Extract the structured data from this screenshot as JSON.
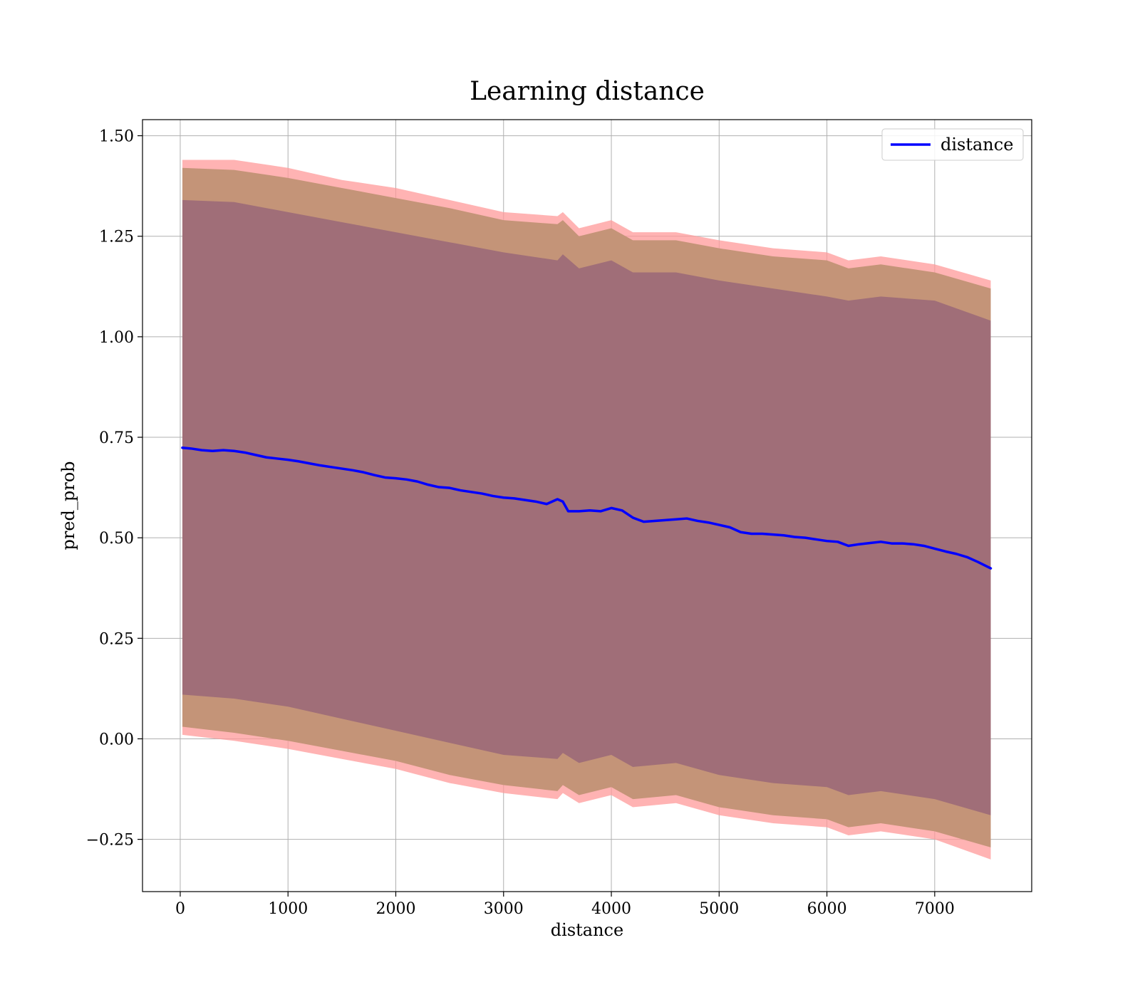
{
  "chart_data": {
    "type": "line",
    "title": "Learning distance",
    "xlabel": "distance",
    "ylabel": "pred_prob",
    "xlim": [
      -350,
      7900
    ],
    "ylim": [
      -0.38,
      1.54
    ],
    "xticks": [
      0,
      1000,
      2000,
      3000,
      4000,
      5000,
      6000,
      7000
    ],
    "yticks": [
      -0.25,
      0.0,
      0.25,
      0.5,
      0.75,
      1.0,
      1.25,
      1.5
    ],
    "ytick_labels": [
      "−0.25",
      "0.00",
      "0.25",
      "0.50",
      "0.75",
      "1.00",
      "1.25",
      "1.50"
    ],
    "grid": true,
    "legend_position": "top-right",
    "colors": {
      "line": "#0000ff",
      "outer_band": "#ff9999",
      "middle_band": "#c49478",
      "inner_band": "#a06e78"
    },
    "series": [
      {
        "name": "distance",
        "x": [
          20,
          100,
          200,
          300,
          400,
          500,
          600,
          700,
          800,
          900,
          1000,
          1100,
          1200,
          1300,
          1400,
          1500,
          1600,
          1700,
          1800,
          1900,
          2000,
          2100,
          2200,
          2300,
          2400,
          2500,
          2600,
          2700,
          2800,
          2900,
          3000,
          3100,
          3200,
          3300,
          3400,
          3500,
          3550,
          3600,
          3700,
          3800,
          3900,
          4000,
          4100,
          4200,
          4300,
          4400,
          4500,
          4600,
          4700,
          4800,
          4900,
          5000,
          5100,
          5200,
          5300,
          5400,
          5500,
          5600,
          5700,
          5800,
          5900,
          6000,
          6100,
          6200,
          6300,
          6400,
          6500,
          6600,
          6700,
          6800,
          6900,
          7000,
          7100,
          7200,
          7300,
          7400,
          7520
        ],
        "y": [
          0.724,
          0.722,
          0.718,
          0.716,
          0.718,
          0.716,
          0.712,
          0.706,
          0.7,
          0.697,
          0.694,
          0.69,
          0.685,
          0.68,
          0.676,
          0.672,
          0.668,
          0.663,
          0.656,
          0.65,
          0.648,
          0.645,
          0.64,
          0.632,
          0.626,
          0.624,
          0.618,
          0.614,
          0.61,
          0.604,
          0.6,
          0.598,
          0.594,
          0.59,
          0.584,
          0.596,
          0.59,
          0.566,
          0.566,
          0.568,
          0.566,
          0.574,
          0.568,
          0.55,
          0.54,
          0.542,
          0.544,
          0.546,
          0.548,
          0.542,
          0.538,
          0.532,
          0.526,
          0.514,
          0.51,
          0.51,
          0.508,
          0.506,
          0.502,
          0.5,
          0.496,
          0.492,
          0.49,
          0.48,
          0.484,
          0.487,
          0.49,
          0.486,
          0.486,
          0.484,
          0.48,
          0.473,
          0.466,
          0.46,
          0.452,
          0.44,
          0.424
        ]
      }
    ],
    "bands": {
      "x": [
        20,
        500,
        1000,
        1500,
        2000,
        2500,
        3000,
        3500,
        3550,
        3700,
        4000,
        4200,
        4600,
        5000,
        5500,
        6000,
        6200,
        6500,
        7000,
        7520
      ],
      "outer": {
        "upper": [
          1.44,
          1.44,
          1.42,
          1.39,
          1.37,
          1.34,
          1.31,
          1.3,
          1.31,
          1.27,
          1.29,
          1.26,
          1.26,
          1.24,
          1.22,
          1.21,
          1.19,
          1.2,
          1.18,
          1.14
        ],
        "lower": [
          0.01,
          -0.005,
          -0.025,
          -0.05,
          -0.075,
          -0.11,
          -0.135,
          -0.15,
          -0.135,
          -0.16,
          -0.14,
          -0.17,
          -0.16,
          -0.19,
          -0.21,
          -0.22,
          -0.24,
          -0.23,
          -0.25,
          -0.3
        ]
      },
      "middle": {
        "upper": [
          1.42,
          1.415,
          1.395,
          1.37,
          1.345,
          1.32,
          1.29,
          1.28,
          1.29,
          1.25,
          1.27,
          1.24,
          1.24,
          1.22,
          1.2,
          1.19,
          1.17,
          1.18,
          1.16,
          1.12
        ],
        "lower": [
          0.03,
          0.015,
          -0.005,
          -0.03,
          -0.055,
          -0.09,
          -0.115,
          -0.13,
          -0.115,
          -0.14,
          -0.12,
          -0.15,
          -0.14,
          -0.17,
          -0.19,
          -0.2,
          -0.22,
          -0.21,
          -0.23,
          -0.27
        ]
      },
      "inner": {
        "upper": [
          1.34,
          1.335,
          1.31,
          1.285,
          1.26,
          1.235,
          1.21,
          1.19,
          1.205,
          1.17,
          1.19,
          1.16,
          1.16,
          1.14,
          1.12,
          1.1,
          1.09,
          1.1,
          1.09,
          1.04
        ],
        "lower": [
          0.11,
          0.1,
          0.08,
          0.05,
          0.02,
          -0.01,
          -0.04,
          -0.05,
          -0.035,
          -0.06,
          -0.04,
          -0.07,
          -0.06,
          -0.09,
          -0.11,
          -0.12,
          -0.14,
          -0.13,
          -0.15,
          -0.19
        ]
      }
    }
  }
}
